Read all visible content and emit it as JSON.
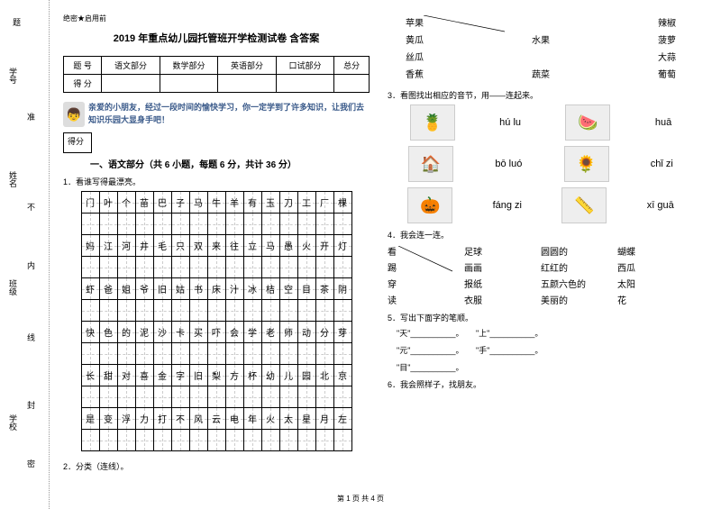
{
  "gutter": {
    "labels": [
      "题",
      "学号",
      "准",
      "姓名",
      "不",
      "内",
      "班级",
      "线",
      "封",
      "学校",
      "密"
    ],
    "dotchar": "·"
  },
  "header_tag": "绝密★启用前",
  "title": "2019 年重点幼儿园托管班开学检测试卷 含答案",
  "score_table": {
    "headers": [
      "题  号",
      "语文部分",
      "数学部分",
      "英语部分",
      "口试部分",
      "总分"
    ],
    "row2_label": "得  分"
  },
  "intro": "亲爱的小朋友，经过一段时间的愉快学习，你一定学到了许多知识，让我们去知识乐园大显身手吧！",
  "score_box_label": "得分",
  "section1_title": "一、语文部分（共 6 小题，每题 6 分，共计 36 分）",
  "q1_label": "1．看谁写得最漂亮。",
  "char_grid": [
    [
      "门",
      "叶",
      "个",
      "苗",
      "巴",
      "子",
      "马",
      "牛",
      "羊",
      "有",
      "玉",
      "刀",
      "工",
      "厂",
      "棵"
    ],
    [
      "",
      "",
      "",
      "",
      "",
      "",
      "",
      "",
      "",
      "",
      "",
      "",
      "",
      "",
      ""
    ],
    [
      "妈",
      "江",
      "河",
      "井",
      "毛",
      "只",
      "双",
      "来",
      "往",
      "立",
      "马",
      "愚",
      "火",
      "开",
      "灯"
    ],
    [
      "",
      "",
      "",
      "",
      "",
      "",
      "",
      "",
      "",
      "",
      "",
      "",
      "",
      "",
      ""
    ],
    [
      "虾",
      "爸",
      "姐",
      "爷",
      "旧",
      "姑",
      "书",
      "床",
      "汁",
      "冰",
      "桔",
      "空",
      "目",
      "茶",
      "阴"
    ],
    [
      "",
      "",
      "",
      "",
      "",
      "",
      "",
      "",
      "",
      "",
      "",
      "",
      "",
      "",
      ""
    ],
    [
      "快",
      "色",
      "的",
      "泥",
      "沙",
      "卡",
      "买",
      "吓",
      "会",
      "学",
      "老",
      "师",
      "动",
      "分",
      "芽"
    ],
    [
      "",
      "",
      "",
      "",
      "",
      "",
      "",
      "",
      "",
      "",
      "",
      "",
      "",
      "",
      ""
    ],
    [
      "长",
      "甜",
      "对",
      "喜",
      "金",
      "字",
      "旧",
      "梨",
      "方",
      "杯",
      "幼",
      "儿",
      "园",
      "北",
      "京"
    ],
    [
      "",
      "",
      "",
      "",
      "",
      "",
      "",
      "",
      "",
      "",
      "",
      "",
      "",
      "",
      ""
    ],
    [
      "是",
      "变",
      "浮",
      "力",
      "打",
      "不",
      "风",
      "云",
      "电",
      "年",
      "火",
      "太",
      "星",
      "月",
      "左"
    ],
    [
      "",
      "",
      "",
      "",
      "",
      "",
      "",
      "",
      "",
      "",
      "",
      "",
      "",
      "",
      ""
    ]
  ],
  "q2_label": "2．分类（连线）。",
  "match2": {
    "left": [
      "苹果",
      "黄瓜",
      "丝瓜",
      "香蕉"
    ],
    "mid": [
      "水果",
      "蔬菜"
    ],
    "right": [
      "辣椒",
      "菠萝",
      "大蒜",
      "葡萄"
    ]
  },
  "q3_label": "3．看图找出相应的音节，用——连起来。",
  "q3_items": {
    "left_pinyin": [
      "hú lu",
      "bō luó",
      "fáng zi"
    ],
    "right_pinyin": [
      "huā",
      "chǐ zi",
      "xī guā"
    ]
  },
  "q4_label": "4．我会连一连。",
  "q4": {
    "col1": [
      "看",
      "踢",
      "穿",
      "读"
    ],
    "col2": [
      "足球",
      "画画",
      "报纸",
      "衣服"
    ],
    "col3": [
      "圆圆的",
      "红红的",
      "五颜六色的",
      "美丽的"
    ],
    "col4": [
      "蝴蝶",
      "西瓜",
      "太阳",
      "花"
    ]
  },
  "q5_label": "5．写出下面字的笔顺。",
  "q5_items": [
    "\"天\"__________。",
    "\"上\"__________。",
    "\"元\"__________。",
    "\"手\"__________。",
    "\"目\"__________。"
  ],
  "q6_label": "6．我会照样子，找朋友。",
  "footer": "第 1 页 共 4 页",
  "colors": {
    "intro_text": "#3a5a8a",
    "grid_dash": "#cccccc"
  }
}
